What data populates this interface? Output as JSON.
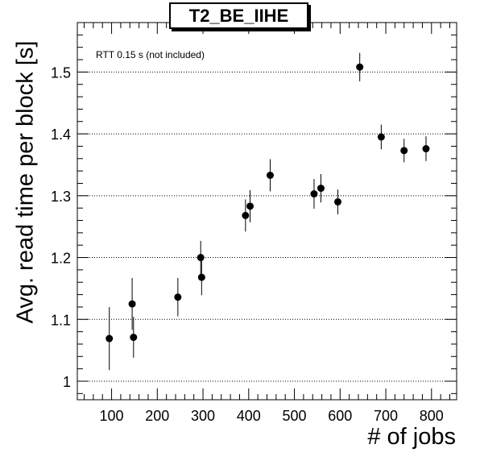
{
  "chart_data": {
    "type": "scatter",
    "title": "T2_BE_IIHE",
    "annotation": "RTT 0.15 s (not included)",
    "xlabel": "# of jobs",
    "ylabel": "Avg. read time per block [s]",
    "xlim": [
      25,
      855
    ],
    "ylim": [
      0.97,
      1.58
    ],
    "xticks": [
      100,
      200,
      300,
      400,
      500,
      600,
      700,
      800
    ],
    "yticks": [
      1,
      1.1,
      1.2,
      1.3,
      1.4,
      1.5
    ],
    "xtick_labels": [
      "100",
      "200",
      "300",
      "400",
      "500",
      "600",
      "700",
      "800"
    ],
    "ytick_labels": [
      "1",
      "1.1",
      "1.2",
      "1.3",
      "1.4",
      "1.5"
    ],
    "grid": "horizontal dotted",
    "points": [
      {
        "x": 95,
        "y": 1.069,
        "err": 0.051
      },
      {
        "x": 145,
        "y": 1.125,
        "err": 0.042
      },
      {
        "x": 148,
        "y": 1.071,
        "err": 0.033
      },
      {
        "x": 245,
        "y": 1.136,
        "err": 0.031
      },
      {
        "x": 295,
        "y": 1.2,
        "err": 0.027
      },
      {
        "x": 297,
        "y": 1.168,
        "err": 0.029
      },
      {
        "x": 393,
        "y": 1.268,
        "err": 0.026
      },
      {
        "x": 403,
        "y": 1.283,
        "err": 0.026
      },
      {
        "x": 447,
        "y": 1.333,
        "err": 0.026
      },
      {
        "x": 543,
        "y": 1.303,
        "err": 0.024
      },
      {
        "x": 558,
        "y": 1.312,
        "err": 0.023
      },
      {
        "x": 595,
        "y": 1.29,
        "err": 0.02
      },
      {
        "x": 643,
        "y": 1.508,
        "err": 0.023
      },
      {
        "x": 690,
        "y": 1.395,
        "err": 0.02
      },
      {
        "x": 740,
        "y": 1.373,
        "err": 0.019
      },
      {
        "x": 788,
        "y": 1.376,
        "err": 0.02
      }
    ]
  }
}
